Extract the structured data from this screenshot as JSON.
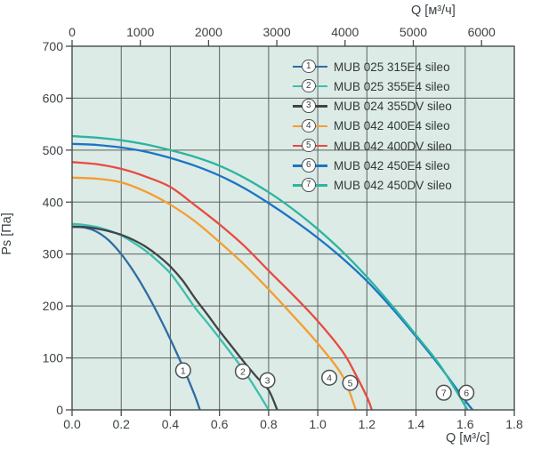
{
  "styles": {
    "plot_bg": "#dcebe6",
    "grid_color": "#5c6261",
    "axis_color": "#454c4d",
    "text_color": "#3b4245",
    "marker_fill": "#ffffff",
    "marker_stroke": "#4a5152"
  },
  "chart_data": {
    "type": "line",
    "title": "",
    "axes": {
      "top_x": {
        "label": "Q [м³/ч]",
        "min": 0,
        "max": 6480,
        "ticks": [
          0,
          1000,
          2000,
          3000,
          4000,
          5000,
          6000
        ]
      },
      "bottom_x": {
        "label": "Q [м³/с]",
        "min": 0,
        "max": 1.8,
        "tick_labels": [
          "0.0",
          "0.2",
          "0.4",
          "0.6",
          "0.8",
          "1.0",
          "1.2",
          "1.4",
          "1.6",
          "1.8"
        ]
      },
      "left_y": {
        "label": "Ps [Па]",
        "min": 0,
        "max": 700,
        "ticks": [
          0,
          100,
          200,
          300,
          400,
          500,
          600,
          700
        ]
      }
    },
    "grid": {
      "x_step": 0.2,
      "y_step": 100,
      "grid_on": true
    },
    "legend_position": "top-right-inside",
    "series": [
      {
        "number": "1",
        "label": "MUB 025 315E4 sileo",
        "color": "#2d6da3",
        "marker_at": [
          0.452,
          76
        ],
        "points": [
          [
            0,
            352
          ],
          [
            0.05,
            351
          ],
          [
            0.1,
            343
          ],
          [
            0.15,
            326
          ],
          [
            0.2,
            300
          ],
          [
            0.25,
            267
          ],
          [
            0.3,
            228
          ],
          [
            0.35,
            184
          ],
          [
            0.4,
            136
          ],
          [
            0.45,
            84
          ],
          [
            0.5,
            27
          ],
          [
            0.52,
            0
          ]
        ]
      },
      {
        "number": "2",
        "label": "MUB 025 355E4 sileo",
        "color": "#3cbfae",
        "marker_at": [
          0.695,
          74
        ],
        "points": [
          [
            0,
            358
          ],
          [
            0.05,
            356
          ],
          [
            0.1,
            352
          ],
          [
            0.15,
            345
          ],
          [
            0.2,
            336
          ],
          [
            0.25,
            322
          ],
          [
            0.3,
            306
          ],
          [
            0.35,
            286
          ],
          [
            0.4,
            263
          ],
          [
            0.45,
            231
          ],
          [
            0.5,
            197
          ],
          [
            0.55,
            168
          ],
          [
            0.6,
            138
          ],
          [
            0.65,
            107
          ],
          [
            0.7,
            75
          ],
          [
            0.75,
            39
          ],
          [
            0.8,
            0
          ]
        ]
      },
      {
        "number": "3",
        "label": "MUB 024 355DV sileo",
        "color": "#3f4547",
        "marker_at": [
          0.795,
          57
        ],
        "points": [
          [
            0,
            353
          ],
          [
            0.05,
            352
          ],
          [
            0.1,
            349
          ],
          [
            0.15,
            344
          ],
          [
            0.2,
            337
          ],
          [
            0.25,
            327
          ],
          [
            0.3,
            314
          ],
          [
            0.35,
            297
          ],
          [
            0.4,
            276
          ],
          [
            0.45,
            249
          ],
          [
            0.5,
            215
          ],
          [
            0.55,
            184
          ],
          [
            0.6,
            152
          ],
          [
            0.65,
            122
          ],
          [
            0.7,
            92
          ],
          [
            0.75,
            64
          ],
          [
            0.8,
            38
          ],
          [
            0.835,
            0
          ]
        ]
      },
      {
        "number": "4",
        "label": "MUB 042 400E4 sileo",
        "color": "#f59d30",
        "marker_at": [
          1.047,
          62
        ],
        "points": [
          [
            0,
            447
          ],
          [
            0.1,
            445
          ],
          [
            0.2,
            438
          ],
          [
            0.3,
            420
          ],
          [
            0.4,
            395
          ],
          [
            0.5,
            363
          ],
          [
            0.6,
            323
          ],
          [
            0.7,
            280
          ],
          [
            0.8,
            232
          ],
          [
            0.9,
            181
          ],
          [
            1.0,
            128
          ],
          [
            1.1,
            66
          ],
          [
            1.155,
            0
          ]
        ]
      },
      {
        "number": "5",
        "label": "MUB 042 400DV sileo",
        "color": "#e84b40",
        "marker_at": [
          1.132,
          52
        ],
        "points": [
          [
            0,
            477
          ],
          [
            0.1,
            473
          ],
          [
            0.2,
            464
          ],
          [
            0.3,
            449
          ],
          [
            0.4,
            429
          ],
          [
            0.5,
            394
          ],
          [
            0.6,
            357
          ],
          [
            0.7,
            316
          ],
          [
            0.8,
            268
          ],
          [
            0.9,
            221
          ],
          [
            1.0,
            171
          ],
          [
            1.1,
            113
          ],
          [
            1.15,
            72
          ],
          [
            1.2,
            25
          ],
          [
            1.22,
            0
          ]
        ]
      },
      {
        "number": "6",
        "label": "MUB 042 450E4 sileo",
        "color": "#1b74c5",
        "marker_at": [
          1.605,
          33
        ],
        "points": [
          [
            0,
            512
          ],
          [
            0.1,
            510
          ],
          [
            0.2,
            505
          ],
          [
            0.3,
            497
          ],
          [
            0.4,
            485
          ],
          [
            0.5,
            470
          ],
          [
            0.6,
            451
          ],
          [
            0.7,
            427
          ],
          [
            0.8,
            398
          ],
          [
            0.9,
            366
          ],
          [
            1.0,
            331
          ],
          [
            1.1,
            292
          ],
          [
            1.2,
            248
          ],
          [
            1.3,
            197
          ],
          [
            1.4,
            141
          ],
          [
            1.5,
            82
          ],
          [
            1.6,
            18
          ],
          [
            1.63,
            0
          ]
        ]
      },
      {
        "number": "7",
        "label": "MUB 042 450DV sileo",
        "color": "#2cb4a0",
        "marker_at": [
          1.513,
          33
        ],
        "points": [
          [
            0,
            527
          ],
          [
            0.1,
            524
          ],
          [
            0.2,
            519
          ],
          [
            0.3,
            511
          ],
          [
            0.4,
            500
          ],
          [
            0.5,
            487
          ],
          [
            0.6,
            470
          ],
          [
            0.7,
            447
          ],
          [
            0.8,
            419
          ],
          [
            0.9,
            386
          ],
          [
            1.0,
            348
          ],
          [
            1.1,
            305
          ],
          [
            1.2,
            256
          ],
          [
            1.3,
            202
          ],
          [
            1.4,
            144
          ],
          [
            1.5,
            84
          ],
          [
            1.61,
            0
          ]
        ]
      }
    ]
  }
}
